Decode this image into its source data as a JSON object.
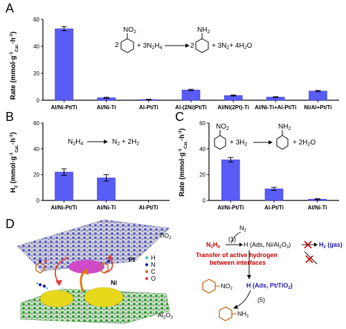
{
  "panels": {
    "a": "A",
    "b": "B",
    "c": "C",
    "d": "D"
  },
  "chart_data": [
    {
      "id": "A",
      "type": "bar",
      "ylabel": "Rate (mmol·g",
      "ylabel_sub": "Cat.",
      "ylabel_tail": "·h",
      "ylabel_sup": "-1",
      "ylabel_sup1": "-1",
      "yticks": [
        0,
        20,
        40,
        60
      ],
      "ylim": [
        0,
        60
      ],
      "categories": [
        "Al/Ni-Pt/Ti",
        "Al/Ni-Ti",
        "Al-Pt/Ti",
        "Al-(2Ni)Pt/Ti",
        "Al/Ni(2Pt)-Ti",
        "Al/Ni-Ti+Al-Pt/Ti",
        "Ni/Al+Pt/Ti"
      ],
      "values": [
        53,
        1.8,
        0.5,
        7.6,
        3.5,
        2.3,
        6.8
      ],
      "errors": [
        1.5,
        0.4,
        0.2,
        0.5,
        0.4,
        0.3,
        0.5
      ],
      "equation": {
        "c1": "2",
        "no2": "NO",
        "no2sub": "2",
        "plus1": "+ 3N",
        "n2sub": "2",
        "h4": "H",
        "h4sub": "4",
        "c2": "2",
        "nh2": "NH",
        "nh2sub": "2",
        "rest": "+ 3N",
        "rest2": "+ 4H",
        "rest3": "O",
        "rest_sub1": "2",
        "rest_sub2": "2"
      }
    },
    {
      "id": "B",
      "type": "bar",
      "ylabel": "H",
      "ylabel_sub": "2",
      "ylabel_mid": " (mmol·g",
      "ylabel_sub2": "Cat.",
      "ylabel_tail": "·h",
      "ylabel_sup": "-1",
      "ylabel_sup1": "-1",
      "yticks": [
        0,
        20,
        40,
        60
      ],
      "ylim": [
        0,
        60
      ],
      "categories": [
        "Al/Ni-Pt/Ti",
        "Al/Ni-Ti",
        "Al-Pt/Ti"
      ],
      "values": [
        22,
        17.5,
        0
      ],
      "errors": [
        2.5,
        2.5,
        0
      ],
      "equation": {
        "lhs": "N",
        "lhs_sub": "2",
        "lhs2": "H",
        "lhs_sub2": "4",
        "rhs": "N",
        "rhs_sub": "2",
        "rhs2": " + 2H",
        "rhs_sub2": "2"
      }
    },
    {
      "id": "C",
      "type": "bar",
      "ylabel": "Rate (mmol·g",
      "ylabel_sub": "Cat.",
      "ylabel_tail": "·h",
      "ylabel_sup": "-1",
      "ylabel_sup1": "-1",
      "yticks": [
        0,
        20,
        40,
        60
      ],
      "ylim": [
        0,
        60
      ],
      "categories": [
        "Al/Ni-Pt/Ti",
        "Al-Pt/Ti",
        "Al/Ni-Ti"
      ],
      "values": [
        31.5,
        9,
        1
      ],
      "errors": [
        1.8,
        1.2,
        0.4
      ],
      "equation": {
        "no2": "NO",
        "no2sub": "2",
        "plus": "+ 3H",
        "plus_sub": "2",
        "nh2": "NH",
        "nh2sub": "2",
        "rest": "+ 2H",
        "rest_sub": "2",
        "rest2": "O"
      }
    }
  ],
  "diagram": {
    "tio2": "TiO",
    "tio2_sub": "2",
    "al2o3": "Al",
    "al2o3_sub": "2",
    "al2o3_o": "O",
    "al2o3_sub2": "3",
    "pt": "Pt",
    "ni": "Ni",
    "legend": [
      "H",
      "N",
      "C",
      "O"
    ],
    "n2": "N",
    "n2_sub": "2",
    "step1": "(1)",
    "n2h4": "N",
    "n2h4_sub": "2",
    "n2h4_h": "H",
    "n2h4_sub2": "4",
    "h_ads_ni": "H (Ads, Ni/Al",
    "h_ads_ni_sub": "2",
    "h_ads_ni_o": "O",
    "h_ads_ni_sub2": "3",
    "h_ads_ni_end": ")",
    "h2gas": "H",
    "h2gas_sub": "2",
    "h2gas_end": " (gas)",
    "transfer1": "Transfer of active hydrogen",
    "transfer2": "between interfaces",
    "h_ads_pt": "H (Ads, Pt/TiO",
    "h_ads_pt_sub": "2",
    "h_ads_pt_end": ")",
    "step5": "(5)",
    "no2": "NO",
    "no2_sub": "2",
    "nh2": "NH",
    "nh2_sub": "2"
  },
  "colors": {
    "bar": "#5a5cf6",
    "red": "#c00000",
    "blue": "#1a1aa8",
    "tio2": "#5b5fd0",
    "al2o3": "#2ea02e",
    "pt": "#d04ac8",
    "ni": "#e8d81c"
  }
}
